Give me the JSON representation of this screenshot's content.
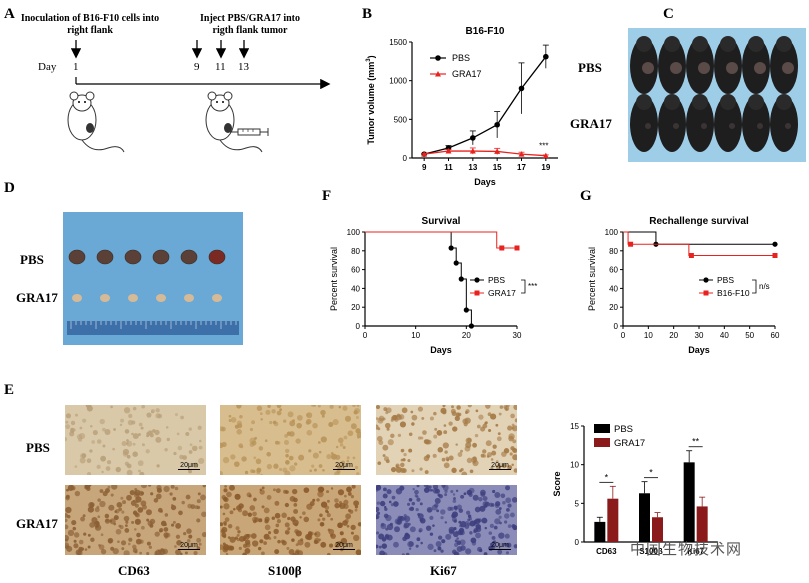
{
  "figure": {
    "panels": {
      "A": {
        "letter": "A",
        "step1": "Inoculation of B16-F10 cells into right flank",
        "step2": "Inject PBS/GRA17 into rigth flank tumor",
        "day_label": "Day",
        "days": [
          "1",
          "9",
          "11",
          "13"
        ]
      },
      "B": {
        "letter": "B",
        "chart_title": "B16-F10",
        "ylabel_main": "Tumor volume",
        "ylabel_unit": "(mm",
        "ylabel_sup": "3",
        "ylabel_close": ")",
        "xlabel": "Days",
        "legend": [
          "PBS",
          "GRA17"
        ],
        "significance": "***"
      },
      "C": {
        "letter": "C",
        "labels": [
          "PBS",
          "GRA17"
        ]
      },
      "D": {
        "letter": "D",
        "labels": [
          "PBS",
          "GRA17"
        ]
      },
      "F": {
        "letter": "F",
        "chart_title": "Survival",
        "ylabel": "Percent survival",
        "xlabel": "Days",
        "legend": [
          "PBS",
          "GRA17"
        ],
        "significance": "***"
      },
      "G": {
        "letter": "G",
        "chart_title": "Rechallenge survival",
        "ylabel": "Percent survival",
        "xlabel": "Days",
        "legend": [
          "PBS",
          "B16-F10"
        ],
        "significance": "n/s"
      },
      "E": {
        "letter": "E",
        "row_labels": [
          "PBS",
          "GRA17"
        ],
        "col_labels": [
          "CD63",
          "S100β",
          "Ki67"
        ],
        "scale_label": "20μm",
        "score_ylabel": "Score",
        "score_legend": [
          "PBS",
          "GRA17"
        ],
        "score_sig": [
          "*",
          "*",
          "**"
        ],
        "score_ticks_x": [
          "CD63",
          "S100β",
          "Ki67"
        ]
      }
    },
    "watermark": "中国生物技术网"
  },
  "chart_data": [
    {
      "type": "line",
      "title": "B16-F10",
      "xlabel": "Days",
      "ylabel": "Tumor volume (mm3)",
      "x": [
        9,
        11,
        13,
        15,
        17,
        19
      ],
      "xlim": [
        8,
        20
      ],
      "ylim": [
        0,
        1500
      ],
      "yticks": [
        0,
        500,
        1000,
        1500
      ],
      "series": [
        {
          "name": "PBS",
          "color": "#000000",
          "marker": "circle",
          "values": [
            50,
            130,
            260,
            430,
            900,
            1310
          ],
          "errors": [
            10,
            30,
            90,
            170,
            330,
            150
          ]
        },
        {
          "name": "GRA17",
          "color": "#e8231f",
          "marker": "triangle",
          "values": [
            50,
            90,
            90,
            85,
            50,
            30
          ],
          "errors": [
            10,
            20,
            40,
            40,
            25,
            10
          ]
        }
      ]
    },
    {
      "type": "line",
      "title": "Survival",
      "xlabel": "Days",
      "ylabel": "Percent survival",
      "xlim": [
        0,
        30
      ],
      "ylim": [
        0,
        100
      ],
      "xticks": [
        0,
        10,
        20,
        30
      ],
      "yticks": [
        0,
        20,
        40,
        60,
        80,
        100
      ],
      "series": [
        {
          "name": "PBS",
          "color": "#000000",
          "marker": "circle",
          "steps": [
            [
              0,
              100
            ],
            [
              17,
              100
            ],
            [
              17,
              83
            ],
            [
              18,
              83
            ],
            [
              18,
              67
            ],
            [
              19,
              67
            ],
            [
              19,
              50
            ],
            [
              20,
              50
            ],
            [
              20,
              17
            ],
            [
              21,
              17
            ],
            [
              21,
              0
            ]
          ],
          "points": [
            [
              17,
              83
            ],
            [
              18,
              67
            ],
            [
              19,
              50
            ],
            [
              20,
              17
            ],
            [
              21,
              0
            ]
          ]
        },
        {
          "name": "GRA17",
          "color": "#e8231f",
          "marker": "square",
          "steps": [
            [
              0,
              100
            ],
            [
              26,
              100
            ],
            [
              26,
              83
            ],
            [
              30,
              83
            ]
          ],
          "points": [
            [
              27,
              83
            ],
            [
              30,
              83
            ]
          ]
        }
      ]
    },
    {
      "type": "line",
      "title": "Rechallenge survival",
      "xlabel": "Days",
      "ylabel": "Percent survival",
      "xlim": [
        0,
        60
      ],
      "ylim": [
        0,
        100
      ],
      "xticks": [
        0,
        10,
        20,
        30,
        40,
        50,
        60
      ],
      "yticks": [
        0,
        20,
        40,
        60,
        80,
        100
      ],
      "series": [
        {
          "name": "PBS",
          "color": "#000000",
          "marker": "circle",
          "steps": [
            [
              0,
              100
            ],
            [
              13,
              100
            ],
            [
              13,
              87
            ],
            [
              60,
              87
            ]
          ],
          "points": [
            [
              13,
              87
            ],
            [
              60,
              87
            ]
          ]
        },
        {
          "name": "B16-F10",
          "color": "#e8231f",
          "marker": "square",
          "steps": [
            [
              0,
              100
            ],
            [
              2,
              100
            ],
            [
              2,
              87
            ],
            [
              26,
              87
            ],
            [
              26,
              75
            ],
            [
              60,
              75
            ]
          ],
          "points": [
            [
              3,
              87
            ],
            [
              27,
              75
            ],
            [
              60,
              75
            ]
          ]
        }
      ]
    },
    {
      "type": "bar",
      "title": "",
      "xlabel": "",
      "ylabel": "Score",
      "categories": [
        "CD63",
        "S100β",
        "Ki67"
      ],
      "ylim": [
        0,
        15
      ],
      "yticks": [
        0,
        5,
        10,
        15
      ],
      "series": [
        {
          "name": "PBS",
          "color": "#000000",
          "values": [
            2.6,
            6.3,
            10.3
          ],
          "errors": [
            0.6,
            1.5,
            1.5
          ]
        },
        {
          "name": "GRA17",
          "color": "#8b1a1a",
          "values": [
            5.6,
            3.2,
            4.6
          ],
          "errors": [
            1.6,
            0.6,
            1.2
          ]
        }
      ],
      "significance": [
        "*",
        "*",
        "**"
      ]
    }
  ]
}
